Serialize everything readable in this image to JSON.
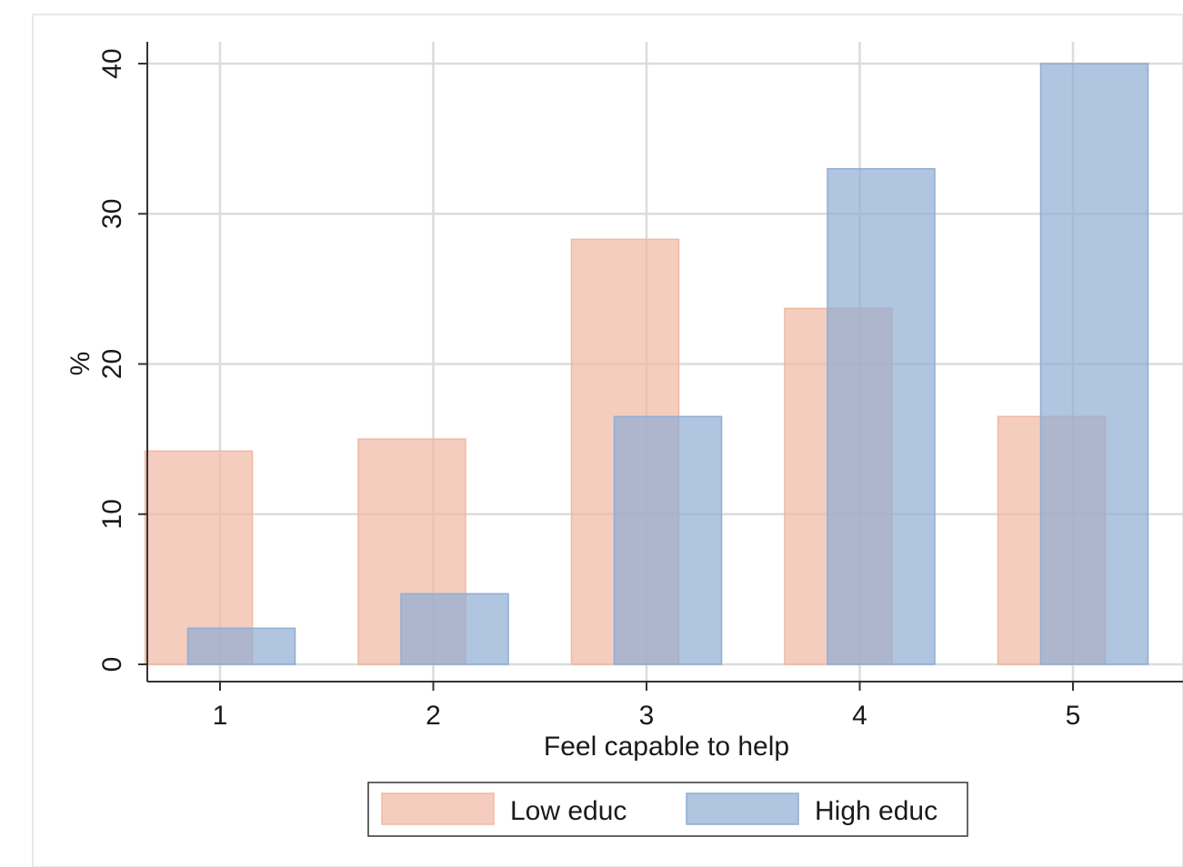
{
  "chart_data": {
    "type": "bar",
    "xlabel": "Feel capable to help",
    "ylabel": "%",
    "categories": [
      "1",
      "2",
      "3",
      "4",
      "5"
    ],
    "ylim": [
      0,
      40
    ],
    "yticks": [
      "0",
      "10",
      "20",
      "30",
      "40"
    ],
    "grid": true,
    "legend_position": "bottom",
    "series": [
      {
        "name": "Low educ",
        "values": [
          14.2,
          15.0,
          28.3,
          23.7,
          16.5
        ],
        "color": "#f0b8a4"
      },
      {
        "name": "High educ",
        "values": [
          2.4,
          4.7,
          16.5,
          33.0,
          40.0
        ],
        "color": "#8fadd3"
      }
    ]
  }
}
